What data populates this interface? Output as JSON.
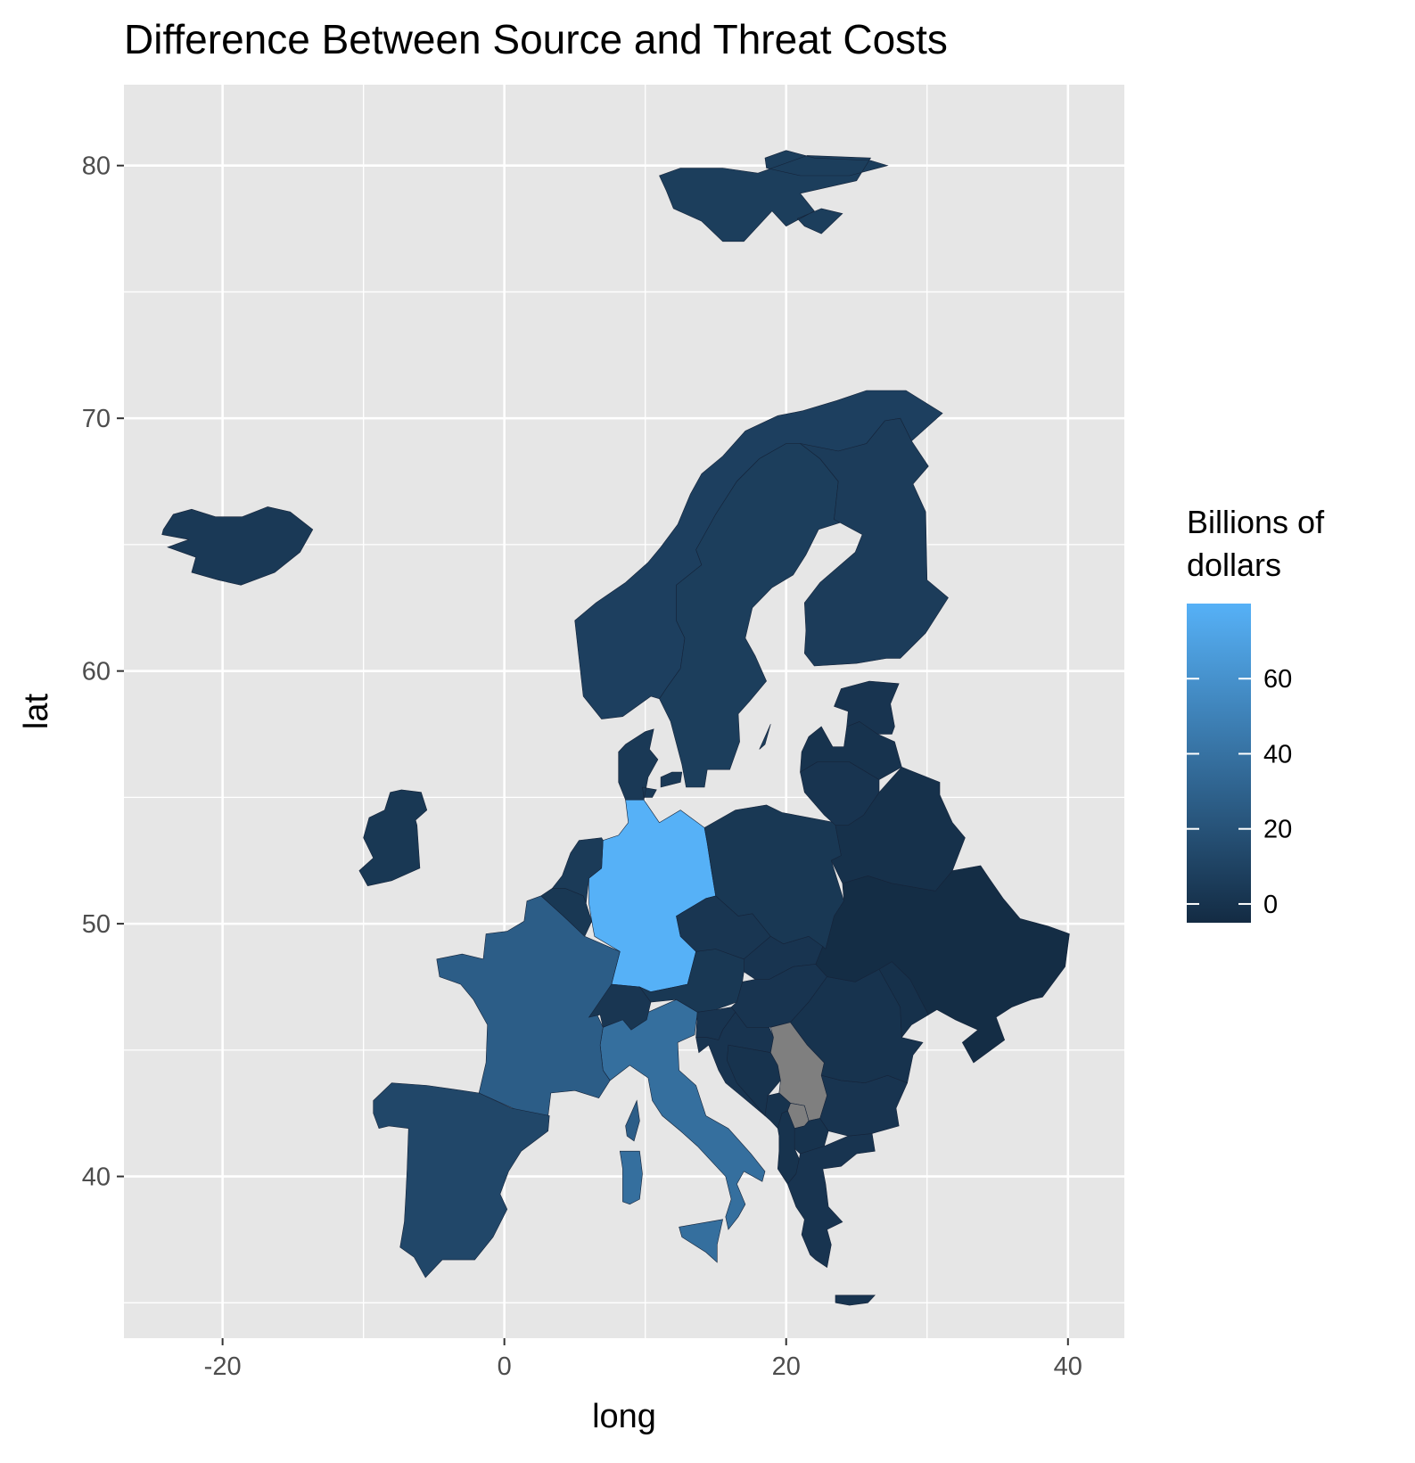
{
  "chart_data": {
    "type": "map",
    "title": "Difference Between Source and Threat Costs",
    "xlabel": "long",
    "ylabel": "lat",
    "xlim": [
      -27,
      44
    ],
    "ylim": [
      33.6,
      83.2
    ],
    "x_ticks": [
      -20,
      0,
      20,
      40
    ],
    "x_tick_labels": [
      "-20",
      "0",
      "20",
      "40"
    ],
    "y_ticks": [
      40,
      50,
      60,
      70,
      80
    ],
    "y_tick_labels": [
      "40",
      "50",
      "60",
      "70",
      "80"
    ],
    "x_minor": [
      -10,
      10,
      30
    ],
    "y_minor": [
      35,
      45,
      55,
      65,
      75
    ],
    "grid": true,
    "panel_background": "#e6e6e6",
    "legend": {
      "title": "Billions of dollars",
      "title_lines": [
        "Billions of",
        "dollars"
      ],
      "position": "right",
      "range": [
        -5,
        80
      ],
      "breaks": [
        0,
        20,
        40,
        60
      ],
      "break_labels": [
        "0",
        "20",
        "40",
        "60"
      ],
      "low_color": "#132b43",
      "high_color": "#56b1f7",
      "na_color": "#7f7f7f"
    },
    "regions": [
      {
        "name": "Germany",
        "value": 80
      },
      {
        "name": "Italy",
        "value": 38
      },
      {
        "name": "France",
        "value": 27
      },
      {
        "name": "Spain",
        "value": 13
      },
      {
        "name": "Norway",
        "value": 8
      },
      {
        "name": "Sweden",
        "value": 7
      },
      {
        "name": "Finland",
        "value": 6
      },
      {
        "name": "Iceland",
        "value": 4
      },
      {
        "name": "Ireland",
        "value": 3
      },
      {
        "name": "Denmark",
        "value": 4
      },
      {
        "name": "Netherlands",
        "value": 5
      },
      {
        "name": "Belgium",
        "value": 3
      },
      {
        "name": "Switzerland",
        "value": 2
      },
      {
        "name": "Austria",
        "value": 3
      },
      {
        "name": "Poland",
        "value": 3
      },
      {
        "name": "Czech Republic",
        "value": 2
      },
      {
        "name": "Slovakia",
        "value": 1
      },
      {
        "name": "Hungary",
        "value": 1
      },
      {
        "name": "Slovenia",
        "value": 1
      },
      {
        "name": "Croatia",
        "value": 1
      },
      {
        "name": "Bosnia and Herzegovina",
        "value": 0
      },
      {
        "name": "Serbia",
        "value": null
      },
      {
        "name": "Kosovo",
        "value": null
      },
      {
        "name": "Montenegro",
        "value": 0
      },
      {
        "name": "Albania",
        "value": 0
      },
      {
        "name": "North Macedonia",
        "value": 0
      },
      {
        "name": "Greece",
        "value": 1
      },
      {
        "name": "Bulgaria",
        "value": 1
      },
      {
        "name": "Romania",
        "value": 0
      },
      {
        "name": "Moldova",
        "value": -1
      },
      {
        "name": "Ukraine",
        "value": -4
      },
      {
        "name": "Belarus",
        "value": -1
      },
      {
        "name": "Lithuania",
        "value": 1
      },
      {
        "name": "Latvia",
        "value": 0
      },
      {
        "name": "Estonia",
        "value": 1
      },
      {
        "name": "Svalbard",
        "value": 7
      }
    ]
  }
}
